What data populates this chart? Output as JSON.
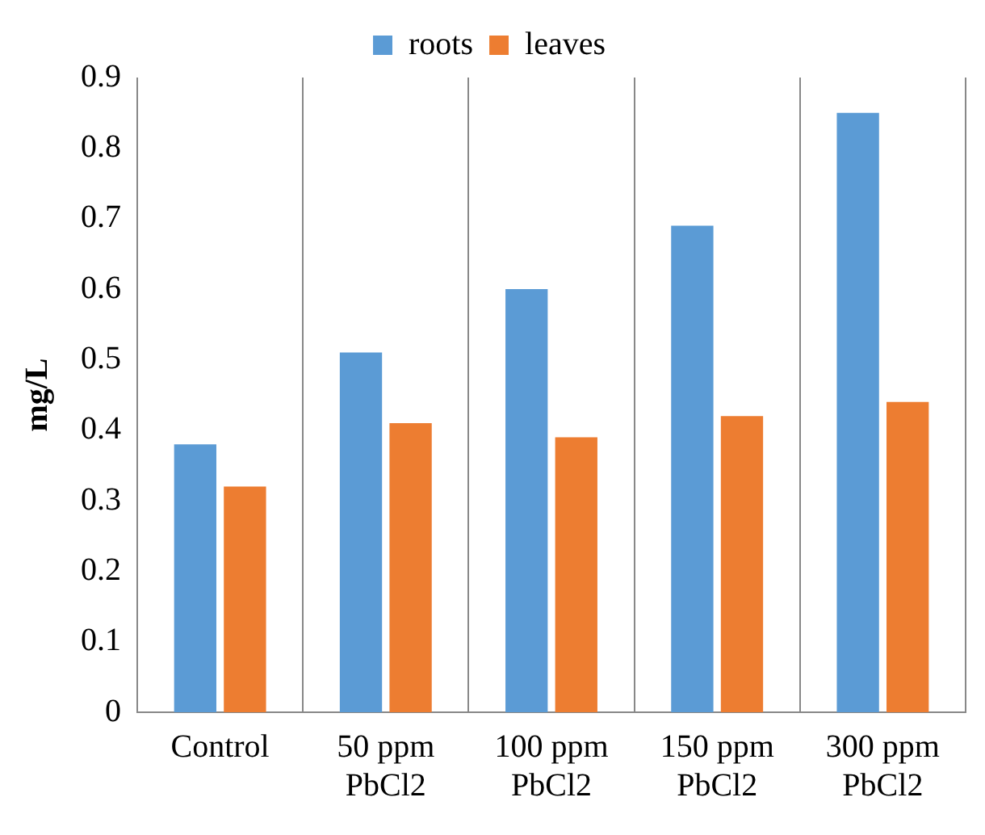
{
  "chart_data": {
    "type": "bar",
    "ylabel": "mg/L",
    "categories": [
      "Control",
      "50 ppm PbCl2",
      "100 ppm PbCl2",
      "150 ppm PbCl2",
      "300 ppm PbCl2"
    ],
    "series": [
      {
        "name": "roots",
        "color": "#5b9bd5",
        "values": [
          0.38,
          0.51,
          0.6,
          0.69,
          0.85
        ]
      },
      {
        "name": "leaves",
        "color": "#ed7d31",
        "values": [
          0.32,
          0.41,
          0.39,
          0.42,
          0.44
        ]
      }
    ],
    "ylim": [
      0,
      0.9
    ],
    "yticks": [
      0,
      0.1,
      0.2,
      0.3,
      0.4,
      0.5,
      0.6,
      0.7,
      0.8,
      0.9
    ],
    "grid": "x",
    "legend": "top"
  }
}
